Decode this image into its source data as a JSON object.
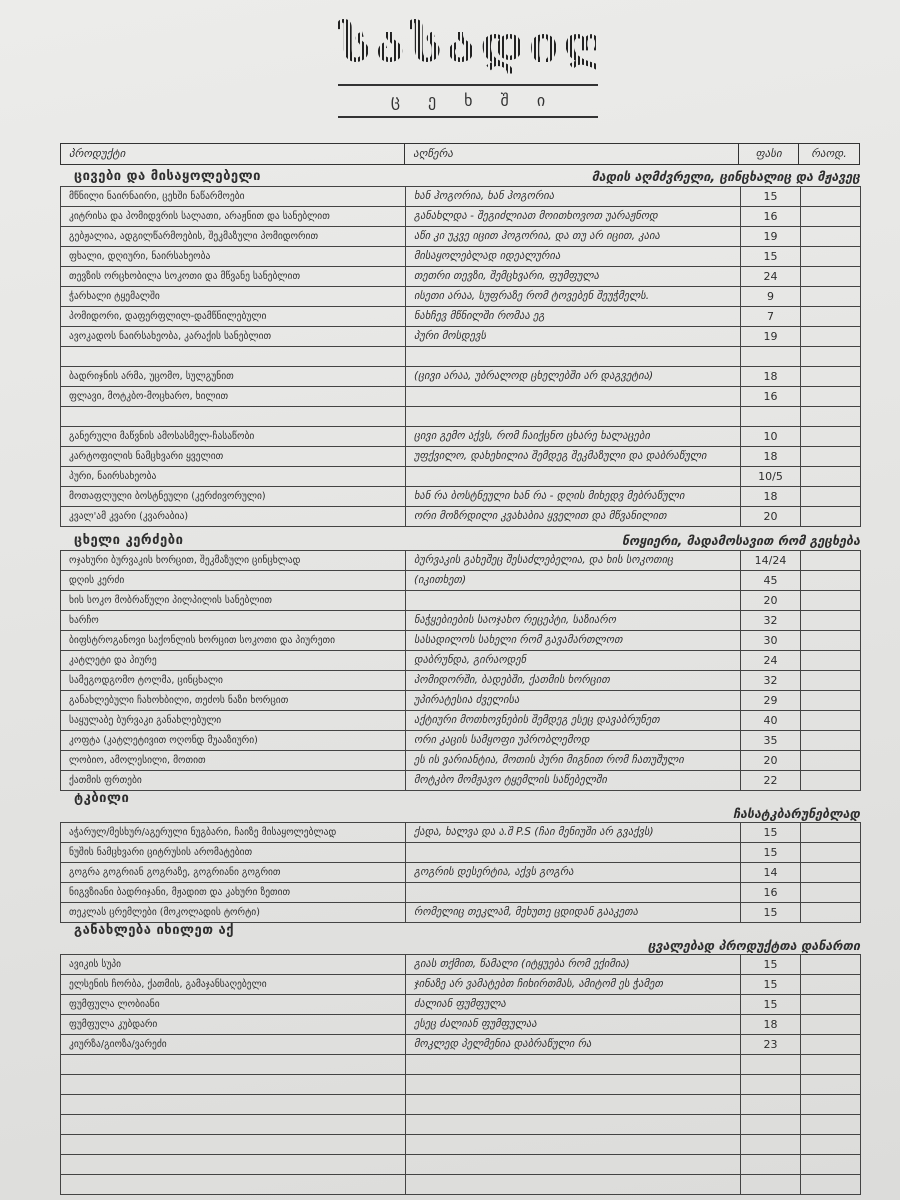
{
  "logo": {
    "title": "სასადილო",
    "subtitle": "ცეხში"
  },
  "header": {
    "product": "პროდუქტი",
    "description": "აღწერა",
    "price": "ფასი",
    "qty": "რაოდ."
  },
  "sections": [
    {
      "title": "ცივები და მისაყოლებელი",
      "subtitle": "მადის აღმძვრელი, ცინცხალიც და მჟავეც",
      "rows": [
        {
          "name": "მწნილი ნაირნაირი, ცეხში ნაწარმოები",
          "desc": "ხან ჰოგორია, ხან ჰოგორია",
          "price": "15"
        },
        {
          "name": "კიტრისა და პომიდვრის სალათი, არაჟნით და სანებლით",
          "desc": "განახლდა - შეგიძლიათ მოითხოვოთ უარაჟნოდ",
          "price": "16"
        },
        {
          "name": "გებჟალია, ადგილწარმოების, შეკმაზული პომიდორით",
          "desc": "აწი კი უკვე იცით ჰოგორია, და თუ არ იცით, კაია",
          "price": "19"
        },
        {
          "name": "ფხალი, დღიური, ნაირსახეობა",
          "desc": "მისაყოლებლად იდეალურია",
          "price": "15"
        },
        {
          "name": "თევზის ორცხობილა სოკოთი და მწვანე სანებლით",
          "desc": "თეთრი თევზი, შემცხვარი, ფუმფულა",
          "price": "24"
        },
        {
          "name": "ჭარხალი ტყემალში",
          "desc": "ისეთი არაა, სუფრაზე რომ ტოვებენ შეუჭმელს.",
          "price": "9"
        },
        {
          "name": "პომიდორი, დაფერფლილ-დამწნილებული",
          "desc": "ნახჩევ მწნილში რომაა ეგ",
          "price": "7"
        },
        {
          "name": "ავოკადოს ნაირსახეობა, კარაქის სანებლით",
          "desc": "პური მოსდევს",
          "price": "19"
        },
        {
          "name": "",
          "desc": "",
          "price": ""
        },
        {
          "name": "ბადრიჯნის არმა, უცომო, სულგუნით",
          "desc": "(ცივი არაა, უბრალოდ ცხელებში არ დაგვეტია)",
          "price": "18"
        },
        {
          "name": "ფლავი, მოტკბო-მოცხარო, ხილით",
          "desc": "",
          "price": "16"
        },
        {
          "name": "",
          "desc": "",
          "price": ""
        },
        {
          "name": "განერული მაწვნის ამოსასმელ-ჩასაწობი",
          "desc": "ცივი გემო აქვს, რომ ჩაიქცნო ცხარე ხალაცები",
          "price": "10"
        },
        {
          "name": "კარტოფილის ნამცხვარი ყველით",
          "desc": "უფქვილო, დახეხილია შემდეგ შეკმაზული და დაბრაწული",
          "price": "18"
        },
        {
          "name": "პური, ნაირსახეობა",
          "desc": "",
          "price": "10/5"
        },
        {
          "name": "მოთაფლული ბოსტნეული (კერძივორული)",
          "desc": "ხან რა ბოსტნეული ხან რა - დღის მიხედვ მებრაწული",
          "price": "18"
        },
        {
          "name": "კვალ'ამ კვარი (კვარაბია)",
          "desc": "ორი მოზრდილი კვახაბია ყველით და მწვანილით",
          "price": "20"
        }
      ]
    },
    {
      "title": "ცხელი კერძები",
      "subtitle": "ნოყიერი, მადამოსავით რომ გეცხება",
      "rows": [
        {
          "name": "ოჯახური ბურვაკის ხორცით, შეკმაზული ცინცხლად",
          "desc": "ბურვაკის გახეშეც შესაძლებელია, და ხის სოკოთიც",
          "price": "14/24"
        },
        {
          "name": "დღის კერძი",
          "desc": "(იკითხეთ)",
          "price": "45"
        },
        {
          "name": "ხის სოკო მობრაწული პილპილის სანებლით",
          "desc": "",
          "price": "20"
        },
        {
          "name": "ხარჩო",
          "desc": "ნაჭყებიების საოჯახო რეცეპტი, საზიარო",
          "price": "32"
        },
        {
          "name": "ბიფსტროგანოვი საქონლის ხორცით სოკოთი და პიურეთი",
          "desc": "სასადილოს სახელი რომ გავამართლოთ",
          "price": "30"
        },
        {
          "name": "კატლეტი და პიურე",
          "desc": "დაბრუნდა, გირაოდენ",
          "price": "24"
        },
        {
          "name": "სამეგოდგომო ტოლმა, ცინცხალი",
          "desc": "პომიდორში, ბადებში, ქათმის ხორცით",
          "price": "32"
        },
        {
          "name": "განახლებული ჩახოხბილი, თეძოს ნაზი ხორცით",
          "desc": "უპირატესია ძველისა",
          "price": "29"
        },
        {
          "name": "საყულაბე ბურვაკი განახლებული",
          "desc": "აქტიური მოთხოვნების შემდეგ ესეც დავაბრუნეთ",
          "price": "40"
        },
        {
          "name": "კოფტა (კატლეტივით ოღონდ მუააზიური)",
          "desc": "ორი კაცის სამყოფი უპრობლემოდ",
          "price": "35"
        },
        {
          "name": "ლობიო, ამოლესილი, მოთით",
          "desc": "ეს ის ვარიანტია, მოთის პური მიგნით რომ ჩათუშული",
          "price": "20"
        },
        {
          "name": "ქათმის ფრთები",
          "desc": "მოტკბო მომჟავო ტყემლის საწებელში",
          "price": "22"
        }
      ]
    },
    {
      "title": "ტკბილი",
      "subtitle": "ჩასატკბარუნებლად",
      "rows": [
        {
          "name": "აჭარულ/მესხურ/აგერული ნუგბარი, ჩაიზე მისაყოლებლად",
          "desc": "ქადა, ხალვა და ა.შ  P.S (ჩაი მენიუში არ გვაქვს)",
          "price": "15"
        },
        {
          "name": "ნუშის ნამცხვარი ციტრუსის არომატებით",
          "desc": "",
          "price": "15"
        },
        {
          "name": "გოგრა გოგრიან გოგრაზე, გოგრიანი გოგრით",
          "desc": "გოგრის დესერტია, აქვს გოგრა",
          "price": "14"
        },
        {
          "name": "ნიგვზიანი ბადრიჯანი, მჟადით და კახური ზეთით",
          "desc": "",
          "price": "16"
        },
        {
          "name": "თეკლას ცრემლები (მოკოლადის ტორტი)",
          "desc": "რომელიც თეკლამ, მეხუთე ცდიდან გააკეთა",
          "price": "15"
        }
      ]
    },
    {
      "title": "განახლება იხილეთ აქ",
      "subtitle": "ცვალებად პროდუქტთა დანართი",
      "rows": [
        {
          "name": "ავიკის სუპი",
          "desc": "გიას თქმით, წამალი (იტყუება რომ ექიმია)",
          "price": "15"
        },
        {
          "name": "ელსენის ჩორბა, ქათმის, გამაჯანსაღებელი",
          "desc": "ჯინაზე არ ვამატებთ ჩიხირთმას, ამიტომ ეს ჭამეთ",
          "price": "15"
        },
        {
          "name": "ფუმფულა ლობიანი",
          "desc": "ძალიან ფუმფულა",
          "price": "15"
        },
        {
          "name": "ფუმფულა კუბდარი",
          "desc": "ესეც ძალიან ფუმფულაა",
          "price": "18"
        },
        {
          "name": "კიურზა/გიოზა/ვარეძი",
          "desc": "მოკლედ პელმენია დაბრაწული რა",
          "price": "23"
        },
        {
          "name": "",
          "desc": "",
          "price": ""
        },
        {
          "name": "",
          "desc": "",
          "price": ""
        },
        {
          "name": "",
          "desc": "",
          "price": ""
        },
        {
          "name": "",
          "desc": "",
          "price": ""
        },
        {
          "name": "",
          "desc": "",
          "price": ""
        },
        {
          "name": "",
          "desc": "",
          "price": ""
        },
        {
          "name": "",
          "desc": "",
          "price": ""
        }
      ]
    }
  ]
}
